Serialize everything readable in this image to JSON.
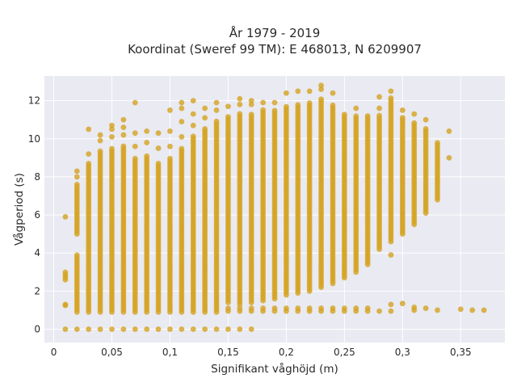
{
  "chart_data": {
    "type": "scatter",
    "title": "År 1979 - 2019",
    "subtitle": "Koordinat (Sweref 99 TM): E 468013, N 6209907",
    "xlabel": "Signifikant våghöjd (m)",
    "ylabel": "Vågperiod (s)",
    "xlim": [
      -0.008,
      0.388
    ],
    "ylim": [
      -0.7,
      13.3
    ],
    "x_ticks": [
      0,
      0.05,
      0.1,
      0.15,
      0.2,
      0.25,
      0.3,
      0.35
    ],
    "x_tick_labels": [
      "0",
      "0,05",
      "0,1",
      "0,15",
      "0,2",
      "0,25",
      "0,3",
      "0,35"
    ],
    "y_ticks": [
      0,
      2,
      4,
      6,
      8,
      10,
      12
    ],
    "y_tick_labels": [
      "0",
      "2",
      "4",
      "6",
      "8",
      "10",
      "12"
    ],
    "grid": true,
    "plot_background": "#e9eaf2",
    "marker_color": "#d4a21f",
    "columns": [
      {
        "x": 0.01,
        "dense": [
          [
            2.6,
            3.1
          ],
          [
            5.9,
            6.0
          ]
        ],
        "y": [
          0,
          1.25,
          1.3
        ]
      },
      {
        "x": 0.02,
        "dense": [
          [
            0.9,
            4.0
          ],
          [
            5.0,
            7.6
          ]
        ],
        "y": [
          0,
          8.0,
          8.3
        ]
      },
      {
        "x": 0.03,
        "dense": [
          [
            0.9,
            8.8
          ]
        ],
        "y": [
          0,
          9.2,
          10.5
        ]
      },
      {
        "x": 0.04,
        "dense": [
          [
            0.9,
            9.4
          ]
        ],
        "y": [
          0,
          9.9,
          10.2
        ]
      },
      {
        "x": 0.05,
        "dense": [
          [
            0.9,
            9.6
          ]
        ],
        "y": [
          0,
          10.1,
          10.5,
          10.7
        ]
      },
      {
        "x": 0.06,
        "dense": [
          [
            0.9,
            9.7
          ]
        ],
        "y": [
          0,
          10.2,
          10.6,
          11.0
        ]
      },
      {
        "x": 0.07,
        "dense": [
          [
            0.9,
            9.0
          ]
        ],
        "y": [
          0,
          9.6,
          10.3,
          11.9
        ]
      },
      {
        "x": 0.08,
        "dense": [
          [
            0.9,
            9.2
          ]
        ],
        "y": [
          0,
          9.8,
          10.4
        ]
      },
      {
        "x": 0.09,
        "dense": [
          [
            0.9,
            8.8
          ]
        ],
        "y": [
          0,
          9.5,
          10.3
        ]
      },
      {
        "x": 0.1,
        "dense": [
          [
            0.9,
            9.0
          ]
        ],
        "y": [
          0,
          9.6,
          10.4,
          11.5
        ]
      },
      {
        "x": 0.11,
        "dense": [
          [
            0.9,
            9.6
          ]
        ],
        "y": [
          0,
          10.1,
          10.9,
          11.6,
          11.9
        ]
      },
      {
        "x": 0.12,
        "dense": [
          [
            0.9,
            10.2
          ]
        ],
        "y": [
          0,
          10.7,
          11.3,
          12.0
        ]
      },
      {
        "x": 0.13,
        "dense": [
          [
            0.9,
            10.6
          ]
        ],
        "y": [
          0,
          11.1,
          11.6
        ]
      },
      {
        "x": 0.14,
        "dense": [
          [
            0.9,
            11.0
          ]
        ],
        "y": [
          0,
          11.5,
          11.9
        ]
      },
      {
        "x": 0.15,
        "dense": [
          [
            1.4,
            11.2
          ]
        ],
        "y": [
          0,
          0.95,
          1.1,
          11.7
        ]
      },
      {
        "x": 0.16,
        "dense": [
          [
            1.3,
            11.4
          ]
        ],
        "y": [
          0,
          0.95,
          1.1,
          11.8,
          12.1
        ]
      },
      {
        "x": 0.17,
        "dense": [
          [
            1.4,
            11.4
          ]
        ],
        "y": [
          0,
          0.95,
          1.1,
          11.8,
          12.0
        ]
      },
      {
        "x": 0.18,
        "dense": [
          [
            1.5,
            11.6
          ]
        ],
        "y": [
          0.95,
          1.1,
          11.9
        ]
      },
      {
        "x": 0.19,
        "dense": [
          [
            1.6,
            11.6
          ]
        ],
        "y": [
          0.95,
          1.1,
          11.9
        ]
      },
      {
        "x": 0.2,
        "dense": [
          [
            1.8,
            11.8
          ]
        ],
        "y": [
          0.95,
          1.1,
          12.4
        ]
      },
      {
        "x": 0.21,
        "dense": [
          [
            1.9,
            11.9
          ]
        ],
        "y": [
          0.95,
          1.1,
          12.5
        ]
      },
      {
        "x": 0.22,
        "dense": [
          [
            2.0,
            12.0
          ]
        ],
        "y": [
          0.95,
          1.1,
          12.5
        ]
      },
      {
        "x": 0.23,
        "dense": [
          [
            2.2,
            12.2
          ]
        ],
        "y": [
          0.95,
          1.1,
          12.6,
          12.8
        ]
      },
      {
        "x": 0.24,
        "dense": [
          [
            2.4,
            11.8
          ]
        ],
        "y": [
          0.95,
          1.1,
          12.4
        ]
      },
      {
        "x": 0.25,
        "dense": [
          [
            2.7,
            11.4
          ]
        ],
        "y": [
          0.95,
          1.1
        ]
      },
      {
        "x": 0.26,
        "dense": [
          [
            3.0,
            11.3
          ]
        ],
        "y": [
          0.95,
          1.1,
          11.6
        ]
      },
      {
        "x": 0.27,
        "dense": [
          [
            3.4,
            11.2
          ]
        ],
        "y": [
          0.95,
          1.1
        ]
      },
      {
        "x": 0.28,
        "dense": [
          [
            4.2,
            11.3
          ]
        ],
        "y": [
          0.95,
          11.6,
          12.2
        ]
      },
      {
        "x": 0.29,
        "dense": [
          [
            4.6,
            12.2
          ]
        ],
        "y": [
          0.95,
          1.3,
          3.9,
          12.5
        ]
      },
      {
        "x": 0.3,
        "dense": [
          [
            5.0,
            11.2
          ]
        ],
        "y": [
          1.35,
          11.5
        ]
      },
      {
        "x": 0.31,
        "dense": [
          [
            5.5,
            10.9
          ]
        ],
        "y": [
          1.0,
          1.15,
          11.3
        ]
      },
      {
        "x": 0.32,
        "dense": [
          [
            6.1,
            10.6
          ]
        ],
        "y": [
          1.1,
          11.0
        ]
      },
      {
        "x": 0.33,
        "dense": [
          [
            6.8,
            9.8
          ]
        ],
        "y": [
          1.0
        ]
      },
      {
        "x": 0.34,
        "dense": [],
        "y": [
          9.0,
          10.4
        ]
      },
      {
        "x": 0.35,
        "dense": [],
        "y": [
          1.05
        ]
      },
      {
        "x": 0.36,
        "dense": [],
        "y": [
          1.0
        ]
      },
      {
        "x": 0.37,
        "dense": [],
        "y": [
          1.0
        ]
      }
    ]
  }
}
